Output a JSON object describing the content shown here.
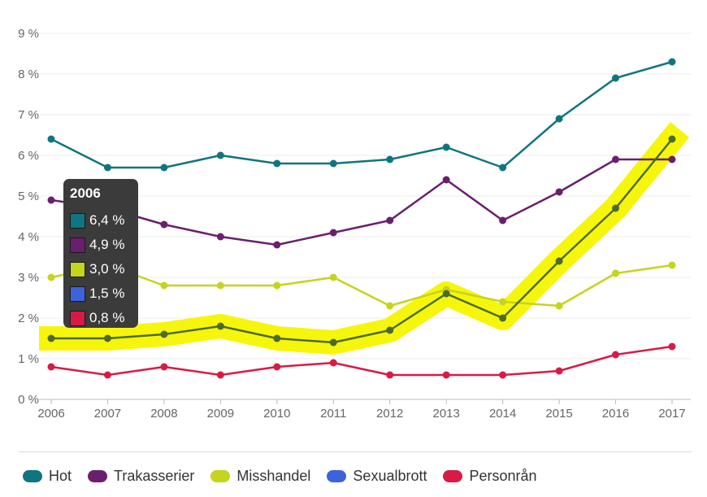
{
  "chart_data": {
    "type": "line",
    "x": [
      "2006",
      "2007",
      "2008",
      "2009",
      "2010",
      "2011",
      "2012",
      "2013",
      "2014",
      "2015",
      "2016",
      "2017"
    ],
    "ylim": [
      0,
      9
    ],
    "yticks": [
      "0 %",
      "1 %",
      "2 %",
      "3 %",
      "4 %",
      "5 %",
      "6 %",
      "7 %",
      "8 %",
      "9 %"
    ],
    "grid": true,
    "legend_position": "bottom",
    "series": [
      {
        "name": "Hot",
        "color": "#0f7580",
        "values": [
          6.4,
          5.7,
          5.7,
          6.0,
          5.8,
          5.8,
          5.9,
          6.2,
          5.7,
          6.9,
          7.9,
          8.3
        ]
      },
      {
        "name": "Trakasserier",
        "color": "#6a1f6e",
        "values": [
          4.9,
          4.7,
          4.3,
          4.0,
          3.8,
          4.1,
          4.4,
          5.4,
          4.4,
          5.1,
          5.9,
          5.9
        ]
      },
      {
        "name": "Misshandel",
        "color": "#c5d41c",
        "values": [
          3.0,
          3.3,
          2.8,
          2.8,
          2.8,
          3.0,
          2.3,
          2.7,
          2.4,
          2.3,
          3.1,
          3.3
        ]
      },
      {
        "name": "Sexualbrott",
        "color": "#3d63dc",
        "values": [
          1.5,
          1.5,
          1.6,
          1.8,
          1.5,
          1.4,
          1.7,
          2.6,
          2.0,
          3.4,
          4.7,
          6.4
        ],
        "highlighted": true,
        "highlight_color": "#f6f600",
        "line_color_on_highlight": "#4c6b2a"
      },
      {
        "name": "Personrån",
        "color": "#d81b45",
        "values": [
          0.8,
          0.6,
          0.8,
          0.6,
          0.8,
          0.9,
          0.6,
          0.6,
          0.6,
          0.7,
          1.1,
          1.3
        ]
      }
    ],
    "tooltip": {
      "title": "2006",
      "rows": [
        {
          "color": "#0f7580",
          "value": "6,4 %"
        },
        {
          "color": "#6a1f6e",
          "value": "4,9 %"
        },
        {
          "color": "#c5d41c",
          "value": "3,0 %"
        },
        {
          "color": "#3d63dc",
          "value": "1,5 %"
        },
        {
          "color": "#d81b45",
          "value": "0,8 %"
        }
      ]
    }
  }
}
